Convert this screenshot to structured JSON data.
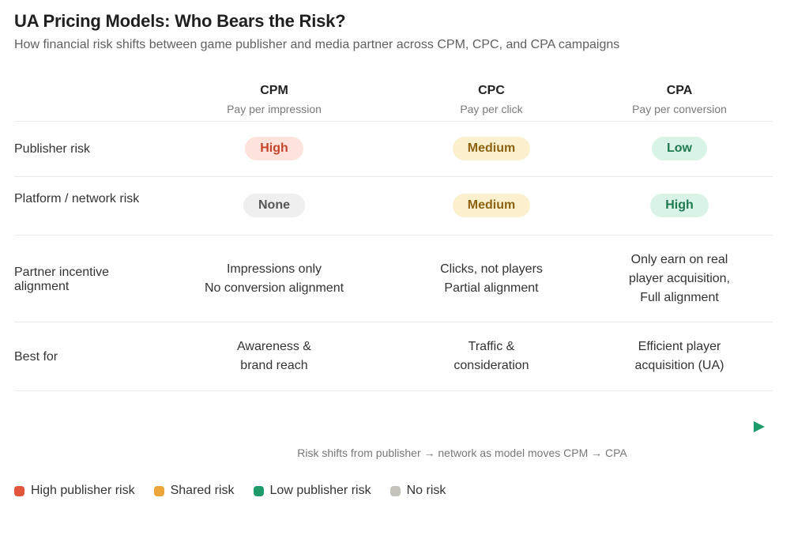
{
  "title": "UA Pricing Models: Who Bears the Risk?",
  "subtitle": "How financial risk shifts between game publisher and media partner across CPM, CPC, and CPA campaigns",
  "columns": [
    {
      "name": "CPM",
      "desc": "Pay per impression"
    },
    {
      "name": "CPC",
      "desc": "Pay per click"
    },
    {
      "name": "CPA",
      "desc": "Pay per conversion"
    }
  ],
  "rows": {
    "publisher_risk": {
      "label": "Publisher risk",
      "values": [
        "High",
        "Medium",
        "Low"
      ]
    },
    "platform_risk": {
      "label": "Platform / network risk",
      "values": [
        "None",
        "Medium",
        "High"
      ]
    },
    "incentive": {
      "label": "Partner incentive alignment",
      "values": [
        [
          "Impressions only",
          "No conversion alignment"
        ],
        [
          "Clicks, not players",
          "Partial alignment"
        ],
        [
          "Only earn on real",
          "player acquisition,",
          "Full alignment"
        ]
      ]
    },
    "best_for": {
      "label": "Best for",
      "values": [
        [
          "Awareness &",
          "brand reach"
        ],
        [
          "Traffic &",
          "consideration"
        ],
        [
          "Efficient player",
          "acquisition (UA)"
        ]
      ]
    }
  },
  "arrow_caption": "Risk shifts from publisher → network as model moves CPM → CPA",
  "legend": [
    {
      "label": "High publisher risk",
      "color": "#e2563b"
    },
    {
      "label": "Shared risk",
      "color": "#eba53a"
    },
    {
      "label": "Low publisher risk",
      "color": "#1f9a6b"
    },
    {
      "label": "No risk",
      "color": "#c4c4bd"
    }
  ],
  "colors": {
    "gradient_start": "#e2563b",
    "gradient_mid": "#d9a528",
    "gradient_end": "#1f9a6b"
  }
}
